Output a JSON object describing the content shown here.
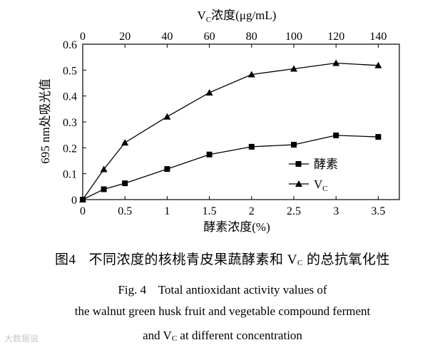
{
  "chart_data": {
    "type": "line",
    "x_bottom": {
      "label": "酵素浓度(%)",
      "ticks": [
        "0",
        "0.5",
        "1",
        "1.5",
        "2",
        "2.5",
        "3",
        "3.5"
      ],
      "range": [
        0,
        3.75
      ]
    },
    "x_top": {
      "label_main": "V",
      "label_sub": "C",
      "label_rest": "浓度(μg/mL)",
      "ticks": [
        "0",
        "20",
        "40",
        "60",
        "80",
        "100",
        "120",
        "140"
      ],
      "range": [
        0,
        150
      ]
    },
    "y": {
      "label": "695 nm处吸光值",
      "ticks": [
        "0",
        "0.1",
        "0.2",
        "0.3",
        "0.4",
        "0.5",
        "0.6"
      ],
      "range": [
        0,
        0.6
      ]
    },
    "grid": false,
    "legend_position": "bottom-right",
    "series": [
      {
        "name": "酵素",
        "axis": "bottom",
        "marker": "square",
        "x": [
          0,
          0.25,
          0.5,
          1,
          1.5,
          2,
          2.5,
          3,
          3.5
        ],
        "y": [
          0,
          0.04,
          0.063,
          0.118,
          0.174,
          0.204,
          0.212,
          0.248,
          0.242
        ]
      },
      {
        "name": "V",
        "name_sub": "C",
        "axis": "top",
        "marker": "triangle",
        "x": [
          0,
          10,
          20,
          40,
          60,
          80,
          100,
          120,
          140
        ],
        "y": [
          0,
          0.117,
          0.22,
          0.32,
          0.413,
          0.483,
          0.505,
          0.527,
          0.518
        ]
      }
    ]
  },
  "caption": {
    "cn_number": "图4",
    "cn_text_before": "不同浓度的核桃青皮果蔬酵素和 V",
    "cn_sub": "C",
    "cn_text_after": " 的总抗氧化性",
    "en_line1": "Fig. 4    Total antioxidant activity values of",
    "en_line2": "the walnut green husk fruit and vegetable compound ferment",
    "en_line3_before": "and V",
    "en_line3_sub": "C",
    "en_line3_after": " at different concentration"
  },
  "watermark": "大数据说"
}
